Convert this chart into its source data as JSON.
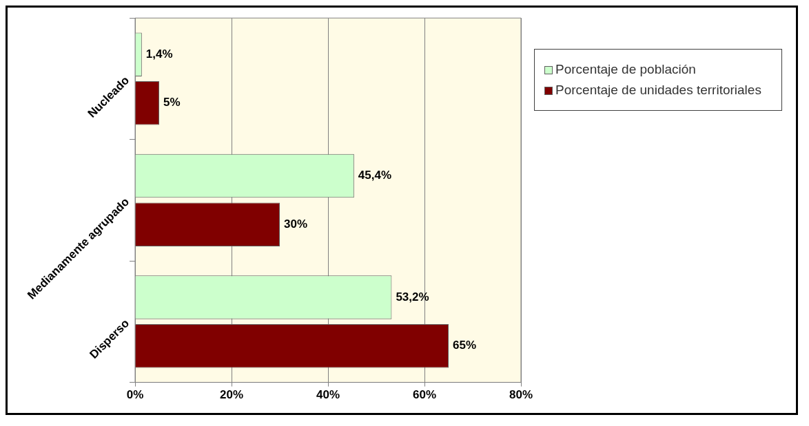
{
  "chart_data": {
    "type": "bar",
    "orientation": "horizontal",
    "categories": [
      "Nucleado",
      "Medianamente agrupado",
      "Disperso"
    ],
    "series": [
      {
        "name": "Porcentaje de población",
        "color": "#ccffcc",
        "values": [
          1.4,
          45.4,
          53.2
        ],
        "value_labels": [
          "1,4%",
          "45,4%",
          "53,2%"
        ]
      },
      {
        "name": "Porcentaje de unidades territoriales",
        "color": "#800000",
        "values": [
          5,
          30,
          65
        ],
        "value_labels": [
          "5%",
          "30%",
          "65%"
        ]
      }
    ],
    "xlim": [
      0,
      80
    ],
    "xticks": [
      {
        "value": 0,
        "label": "0%"
      },
      {
        "value": 20,
        "label": "20%"
      },
      {
        "value": 40,
        "label": "40%"
      },
      {
        "value": 60,
        "label": "60%"
      },
      {
        "value": 80,
        "label": "80%"
      }
    ],
    "grid": "x",
    "legend": "top right"
  }
}
